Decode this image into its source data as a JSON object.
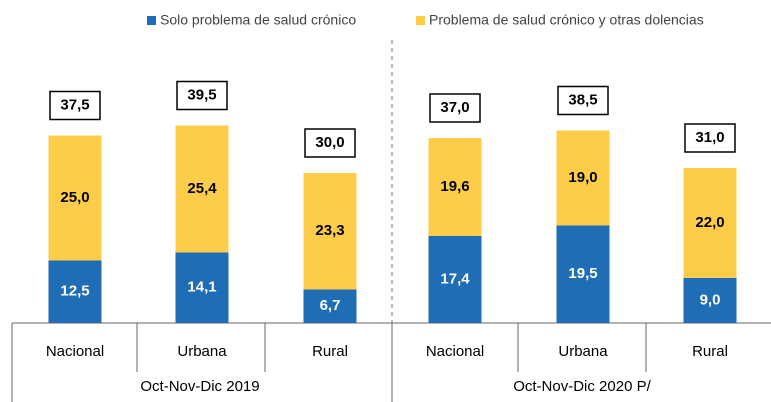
{
  "chart_data": {
    "type": "stacked-bar",
    "categories": [
      "Nacional",
      "Urbana",
      "Rural",
      "Nacional",
      "Urbana",
      "Rural"
    ],
    "groups": [
      "Oct-Nov-Dic 2019",
      "Oct-Nov-Dic 2020 P/"
    ],
    "series": [
      {
        "name": "Solo problema de salud crónico",
        "color": "#1f6db4",
        "values": [
          12.5,
          14.1,
          6.7,
          17.4,
          19.5,
          9.0
        ],
        "value_labels": [
          "12,5",
          "14,1",
          "6,7",
          "17,4",
          "19,5",
          "9,0"
        ]
      },
      {
        "name": "Problema de salud crónico y otras dolencias",
        "color": "#fdcd4a",
        "values": [
          25.0,
          25.4,
          23.3,
          19.6,
          19.0,
          22.0
        ],
        "value_labels": [
          "25,0",
          "25,4",
          "23,3",
          "19,6",
          "19,0",
          "22,0"
        ]
      }
    ],
    "totals": [
      37.5,
      39.5,
      30.0,
      37.0,
      38.5,
      31.0
    ],
    "total_labels": [
      "37,5",
      "39,5",
      "30,0",
      "37,0",
      "38,5",
      "31,0"
    ]
  }
}
